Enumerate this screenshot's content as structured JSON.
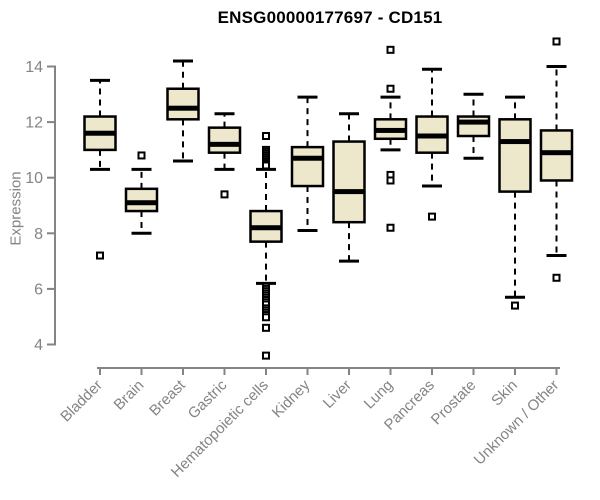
{
  "header": {
    "title": "ENSG00000177697 - CD151"
  },
  "chart_data": {
    "type": "boxplot",
    "title": "ENSG00000177697 - CD151",
    "xlabel": "",
    "ylabel": "Expression",
    "ylim": [
      3.3,
      15.2
    ],
    "yticks": [
      4,
      6,
      8,
      10,
      12,
      14
    ],
    "grid": false,
    "legend": "none",
    "colors": {
      "box_fill": "#EDE8CB",
      "box_border": "#000000",
      "median": "#000000",
      "whisker": "#000000",
      "axis": "#848484",
      "tick_label": "#848484",
      "title": "#000000",
      "outlier_fill": "#ffffff"
    },
    "categories": [
      "Bladder",
      "Brain",
      "Breast",
      "Gastric",
      "Hematopoietic cells",
      "Kidney",
      "Liver",
      "Lung",
      "Pancreas",
      "Prostate",
      "Skin",
      "Unknown / Other"
    ],
    "series": [
      {
        "category": "Bladder",
        "whisker_low": 10.3,
        "q1": 11.0,
        "median": 11.6,
        "q3": 12.2,
        "whisker_high": 13.5,
        "outliers": [
          7.2
        ]
      },
      {
        "category": "Brain",
        "whisker_low": 8.0,
        "q1": 8.8,
        "median": 9.1,
        "q3": 9.6,
        "whisker_high": 10.3,
        "outliers": [
          10.8
        ]
      },
      {
        "category": "Breast",
        "whisker_low": 10.6,
        "q1": 12.1,
        "median": 12.5,
        "q3": 13.2,
        "whisker_high": 14.2,
        "outliers": []
      },
      {
        "category": "Gastric",
        "whisker_low": 10.3,
        "q1": 10.9,
        "median": 11.2,
        "q3": 11.8,
        "whisker_high": 12.3,
        "outliers": [
          9.4
        ]
      },
      {
        "category": "Hematopoietic cells",
        "whisker_low": 6.2,
        "q1": 7.7,
        "median": 8.2,
        "q3": 8.8,
        "whisker_high": 10.3,
        "outliers": [
          11.5,
          11.0,
          10.93,
          10.86,
          10.79,
          10.72,
          10.65,
          10.58,
          10.51,
          10.44,
          6.08,
          6.0,
          5.92,
          5.84,
          5.76,
          5.68,
          5.6,
          5.52,
          5.44,
          5.3,
          5.22,
          5.14,
          5.06,
          4.98,
          4.6,
          3.6
        ]
      },
      {
        "category": "Kidney",
        "whisker_low": 8.1,
        "q1": 9.7,
        "median": 10.7,
        "q3": 11.1,
        "whisker_high": 12.9,
        "outliers": []
      },
      {
        "category": "Liver",
        "whisker_low": 7.0,
        "q1": 8.4,
        "median": 9.5,
        "q3": 11.3,
        "whisker_high": 12.3,
        "outliers": []
      },
      {
        "category": "Lung",
        "whisker_low": 11.0,
        "q1": 11.4,
        "median": 11.7,
        "q3": 12.1,
        "whisker_high": 12.9,
        "outliers": [
          14.6,
          13.2,
          10.1,
          9.9,
          8.2
        ]
      },
      {
        "category": "Pancreas",
        "whisker_low": 9.7,
        "q1": 10.9,
        "median": 11.5,
        "q3": 12.2,
        "whisker_high": 13.9,
        "outliers": [
          8.6
        ]
      },
      {
        "category": "Prostate",
        "whisker_low": 10.7,
        "q1": 11.5,
        "median": 12.0,
        "q3": 12.2,
        "whisker_high": 13.0,
        "outliers": []
      },
      {
        "category": "Skin",
        "whisker_low": 5.7,
        "q1": 9.5,
        "median": 11.3,
        "q3": 12.1,
        "whisker_high": 12.9,
        "outliers": [
          5.4
        ]
      },
      {
        "category": "Unknown / Other",
        "whisker_low": 7.2,
        "q1": 9.9,
        "median": 10.9,
        "q3": 11.7,
        "whisker_high": 14.0,
        "outliers": [
          14.9,
          6.4
        ]
      }
    ]
  }
}
